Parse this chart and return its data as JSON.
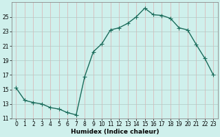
{
  "x": [
    0,
    1,
    2,
    3,
    4,
    5,
    6,
    7,
    8,
    9,
    10,
    11,
    12,
    13,
    14,
    15,
    16,
    17,
    18,
    19,
    20,
    21,
    22,
    23
  ],
  "y": [
    15.2,
    13.5,
    13.2,
    13.0,
    12.5,
    12.3,
    11.8,
    11.5,
    16.8,
    20.2,
    21.3,
    23.2,
    23.5,
    24.1,
    25.0,
    26.2,
    25.3,
    25.2,
    24.8,
    23.5,
    23.2,
    21.2,
    19.3,
    17.0
  ],
  "line_color": "#1a6b5a",
  "marker": "D",
  "marker_size": 2.0,
  "bg_color": "#cff0ec",
  "grid_major_color": "#b0c8c4",
  "grid_minor_color": "#dbb0b0",
  "xlabel": "Humidex (Indice chaleur)",
  "ylim": [
    11,
    27
  ],
  "xlim": [
    -0.5,
    23.5
  ],
  "yticks": [
    11,
    13,
    15,
    17,
    19,
    21,
    23,
    25
  ],
  "xticks": [
    0,
    1,
    2,
    3,
    4,
    5,
    6,
    7,
    8,
    9,
    10,
    11,
    12,
    13,
    14,
    15,
    16,
    17,
    18,
    19,
    20,
    21,
    22,
    23
  ],
  "tick_fontsize": 5.5,
  "xlabel_fontsize": 6.5,
  "line_width": 1.0
}
